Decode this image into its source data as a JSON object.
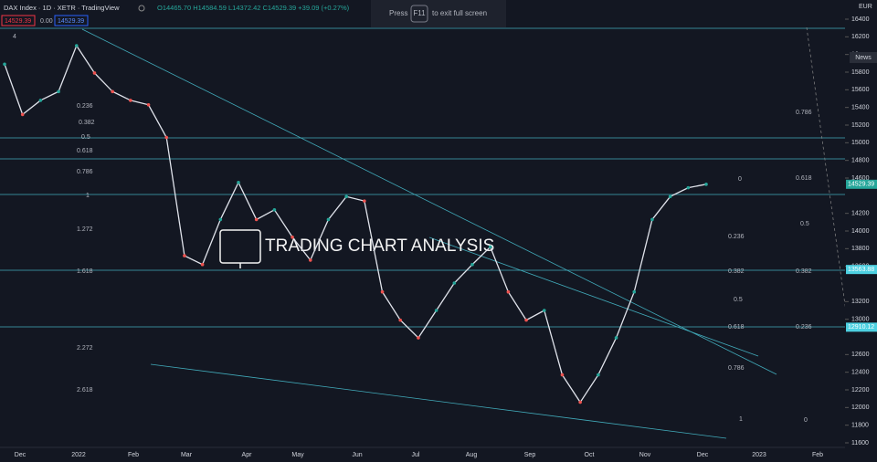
{
  "header": {
    "symbol": "DAX Index · 1D · XETR · TradingView",
    "ohlc": "O14465.70 H14584.59 L14372.42 C14529.39 +39.09 (+0.27%)",
    "sell": "14529.39",
    "spread": "0.00",
    "buy": "14529.39",
    "indicator_count": "4"
  },
  "fullscreen_notice": {
    "press": "Press",
    "key": "F11",
    "rest": "to exit full screen"
  },
  "currency": "EUR",
  "news": "News",
  "watermark": "TRADING CHART ANALYSIS",
  "chart_data": {
    "type": "line",
    "color": "#e0e3eb",
    "categories": [
      null,
      null,
      null,
      null,
      null,
      null,
      null,
      null,
      null,
      null,
      null,
      null,
      null,
      null,
      null,
      null,
      null,
      null,
      null,
      null,
      null,
      null,
      null,
      null,
      null,
      null,
      null,
      null,
      null,
      null,
      null,
      null,
      null,
      null,
      null,
      null,
      null,
      null,
      null,
      null
    ],
    "values": [
      15890,
      15320,
      15480,
      15580,
      16100,
      15790,
      15580,
      15480,
      15430,
      15060,
      13720,
      13620,
      14130,
      14550,
      14130,
      14240,
      13930,
      13670,
      14130,
      14390,
      14340,
      13310,
      12990,
      12790,
      13100,
      13410,
      13620,
      13820,
      13310,
      12990,
      13100,
      12370,
      12060,
      12370,
      12790,
      13310,
      14130,
      14390,
      14490,
      14529.39
    ],
    "ylim": [
      11600,
      16400
    ],
    "yticks": [
      16400,
      16200,
      {
        "value": 16000,
        "label": "16"
      },
      15800,
      15600,
      15400,
      15200,
      15000,
      14800,
      14600,
      14200,
      14000,
      13800,
      13600,
      13200,
      13000,
      12600,
      12400,
      12200,
      12000,
      11800,
      11600
    ],
    "xticks": [
      "Dec",
      "2022",
      "Feb",
      "Mar",
      "Apr",
      "May",
      "Jun",
      "Jul",
      "Aug",
      "Sep",
      "Oct",
      "Nov",
      "Dec",
      "2023",
      "Feb"
    ],
    "price_tags": [
      {
        "value": 14529.39,
        "label": "14529.39"
      },
      {
        "value": 13563.88,
        "label": "13563.88"
      },
      {
        "value": 12910.12,
        "label": "12910.12"
      }
    ]
  },
  "fib_left": [
    "0.236",
    "0.382",
    "0.5",
    "0.618",
    "0.786",
    "1",
    "1.272",
    "1.618",
    "2.272",
    "2.618"
  ],
  "fib_mid": [
    "0",
    "0.236",
    "0.382",
    "0.5",
    "0.618",
    "0.786",
    "1"
  ],
  "fib_right": [
    "0.786",
    "0.618",
    "0.5",
    "0.382",
    "0.236",
    "0"
  ]
}
